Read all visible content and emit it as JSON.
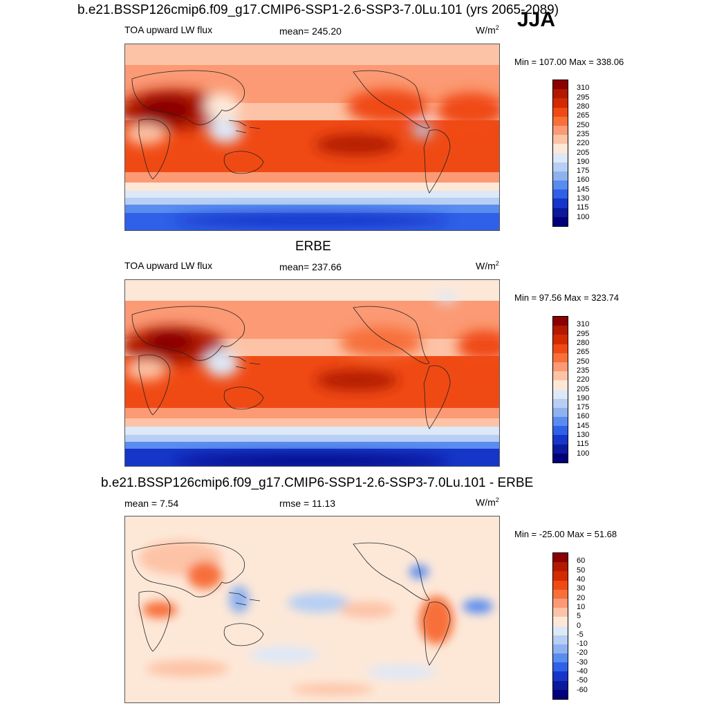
{
  "figure": {
    "main_title": "b.e21.BSSP126cmip6.f09_g17.CMIP6-SSP1-2.6-SSP3-7.0Lu.101 (yrs 2065-2089)",
    "season": "JJA",
    "panel2_title": "ERBE",
    "panel3_title": "b.e21.BSSP126cmip6.f09_g17.CMIP6-SSP1-2.6-SSP3-7.0Lu.101 - ERBE"
  },
  "panels": [
    {
      "left_label": "TOA upward LW flux",
      "center_label": "mean= 245.20",
      "units": "W/m",
      "units_sup": "2",
      "minmax": "Min = 107.00 Max = 338.06"
    },
    {
      "left_label": "TOA upward LW flux",
      "center_label": "mean= 237.66",
      "units": "W/m",
      "units_sup": "2",
      "minmax": "Min =  97.56 Max = 323.74"
    },
    {
      "left_label": "mean =   7.54",
      "center_label": "rmse =  11.13",
      "units": "W/m",
      "units_sup": "2",
      "minmax": "Min = -25.00 Max =  51.68"
    }
  ],
  "colorbar_abs": {
    "levels": [
      "310",
      "295",
      "280",
      "265",
      "250",
      "235",
      "220",
      "205",
      "190",
      "175",
      "160",
      "145",
      "130",
      "115",
      "100"
    ],
    "colors": [
      "#8b0000",
      "#b21a00",
      "#d42a00",
      "#f04a14",
      "#f7703a",
      "#fb9a74",
      "#fdc3a6",
      "#fde8d8",
      "#dde8f8",
      "#b6cff3",
      "#8eb2ef",
      "#5a8cf0",
      "#2f60e8",
      "#1536c8",
      "#0a1a9a",
      "#00007a"
    ]
  },
  "colorbar_diff": {
    "levels": [
      "60",
      "50",
      "40",
      "30",
      "20",
      "10",
      "5",
      "0",
      "-5",
      "-10",
      "-20",
      "-30",
      "-40",
      "-50",
      "-60"
    ],
    "colors": [
      "#8b0000",
      "#b21a00",
      "#d42a00",
      "#f04a14",
      "#f7703a",
      "#fb9a74",
      "#fdc3a6",
      "#fde8d8",
      "#dde8f8",
      "#b6cff3",
      "#8eb2ef",
      "#5a8cf0",
      "#2f60e8",
      "#1536c8",
      "#0a1a9a",
      "#00007a"
    ]
  }
}
